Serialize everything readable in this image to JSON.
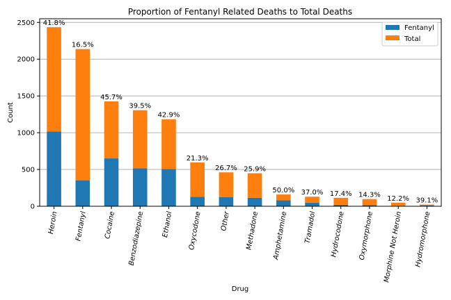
{
  "chart_data": {
    "type": "bar",
    "stacked": true,
    "title": "Proportion of Fentanyl Related Deaths to Total Deaths",
    "xlabel": "Drug",
    "ylabel": "Count",
    "ylim": [
      0,
      2550
    ],
    "yticks": [
      0,
      500,
      1000,
      1500,
      2000,
      2500
    ],
    "grid": "horizontal",
    "legend_position": "top-right",
    "categories": [
      "Heroin",
      "Fentanyl",
      "Cocaine",
      "Benzodiazepine",
      "Ethanol",
      "Oxycodone",
      "Other",
      "Methadone",
      "Amphetamine",
      "Tramadol",
      "Hydrocodone",
      "Oxymorphone",
      "Morphine Not Heroin",
      "Hydromorphone"
    ],
    "series": [
      {
        "name": "Fentanyl",
        "color": "#1f77b4",
        "values": [
          1015,
          353,
          651,
          516,
          508,
          127,
          123,
          116,
          80,
          48,
          20,
          14,
          6,
          9
        ]
      },
      {
        "name": "Total",
        "color": "#ff7f0e",
        "values": [
          1420,
          1785,
          775,
          790,
          676,
          469,
          338,
          333,
          80,
          82,
          95,
          84,
          43,
          14
        ]
      }
    ],
    "annotations": [
      "41.8%",
      "16.5%",
      "45.7%",
      "39.5%",
      "42.9%",
      "21.3%",
      "26.7%",
      "25.9%",
      "50.0%",
      "37.0%",
      "17.4%",
      "14.3%",
      "12.2%",
      "39.1%"
    ]
  }
}
